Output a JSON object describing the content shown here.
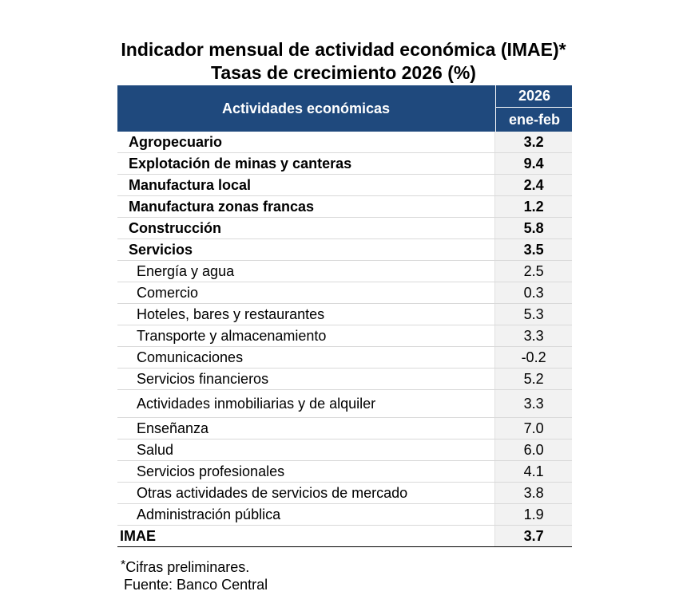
{
  "title": {
    "line1": "Indicador mensual de actividad económica (IMAE)*",
    "line2": "Tasas de crecimiento 2026 (%)"
  },
  "table": {
    "header": {
      "activities": "Actividades económicas",
      "year": "2026",
      "period": "ene-feb"
    },
    "rows": [
      {
        "label": "Agropecuario",
        "value": "3.2",
        "level": "main"
      },
      {
        "label": "Explotación de minas y canteras",
        "value": "9.4",
        "level": "main"
      },
      {
        "label": "Manufactura local",
        "value": "2.4",
        "level": "main"
      },
      {
        "label": "Manufactura zonas francas",
        "value": "1.2",
        "level": "main"
      },
      {
        "label": "Construcción",
        "value": "5.8",
        "level": "main"
      },
      {
        "label": "Servicios",
        "value": "3.5",
        "level": "main"
      },
      {
        "label": "Energía y agua",
        "value": "2.5",
        "level": "sub"
      },
      {
        "label": "Comercio",
        "value": "0.3",
        "level": "sub"
      },
      {
        "label": "Hoteles, bares y restaurantes",
        "value": "5.3",
        "level": "sub"
      },
      {
        "label": "Transporte y almacenamiento",
        "value": "3.3",
        "level": "sub"
      },
      {
        "label": "Comunicaciones",
        "value": "-0.2",
        "level": "sub"
      },
      {
        "label": "Servicios financieros",
        "value": "5.2",
        "level": "sub"
      },
      {
        "label": "Actividades inmobiliarias y de alquiler",
        "value": "3.3",
        "level": "sub"
      },
      {
        "label": "Enseñanza",
        "value": "7.0",
        "level": "sub"
      },
      {
        "label": "Salud",
        "value": "6.0",
        "level": "sub"
      },
      {
        "label": "Servicios profesionales",
        "value": "4.1",
        "level": "sub"
      },
      {
        "label": "Otras actividades de servicios de mercado",
        "value": "3.8",
        "level": "sub"
      },
      {
        "label": "Administración pública",
        "value": "1.9",
        "level": "sub"
      },
      {
        "label": "IMAE",
        "value": "3.7",
        "level": "total"
      }
    ]
  },
  "footer": {
    "asterisk": "*",
    "note": "Cifras preliminares.",
    "source": "Fuente: Banco Central"
  },
  "colors": {
    "header_bg": "#1f497d",
    "value_bg": "#f2f2f2"
  }
}
